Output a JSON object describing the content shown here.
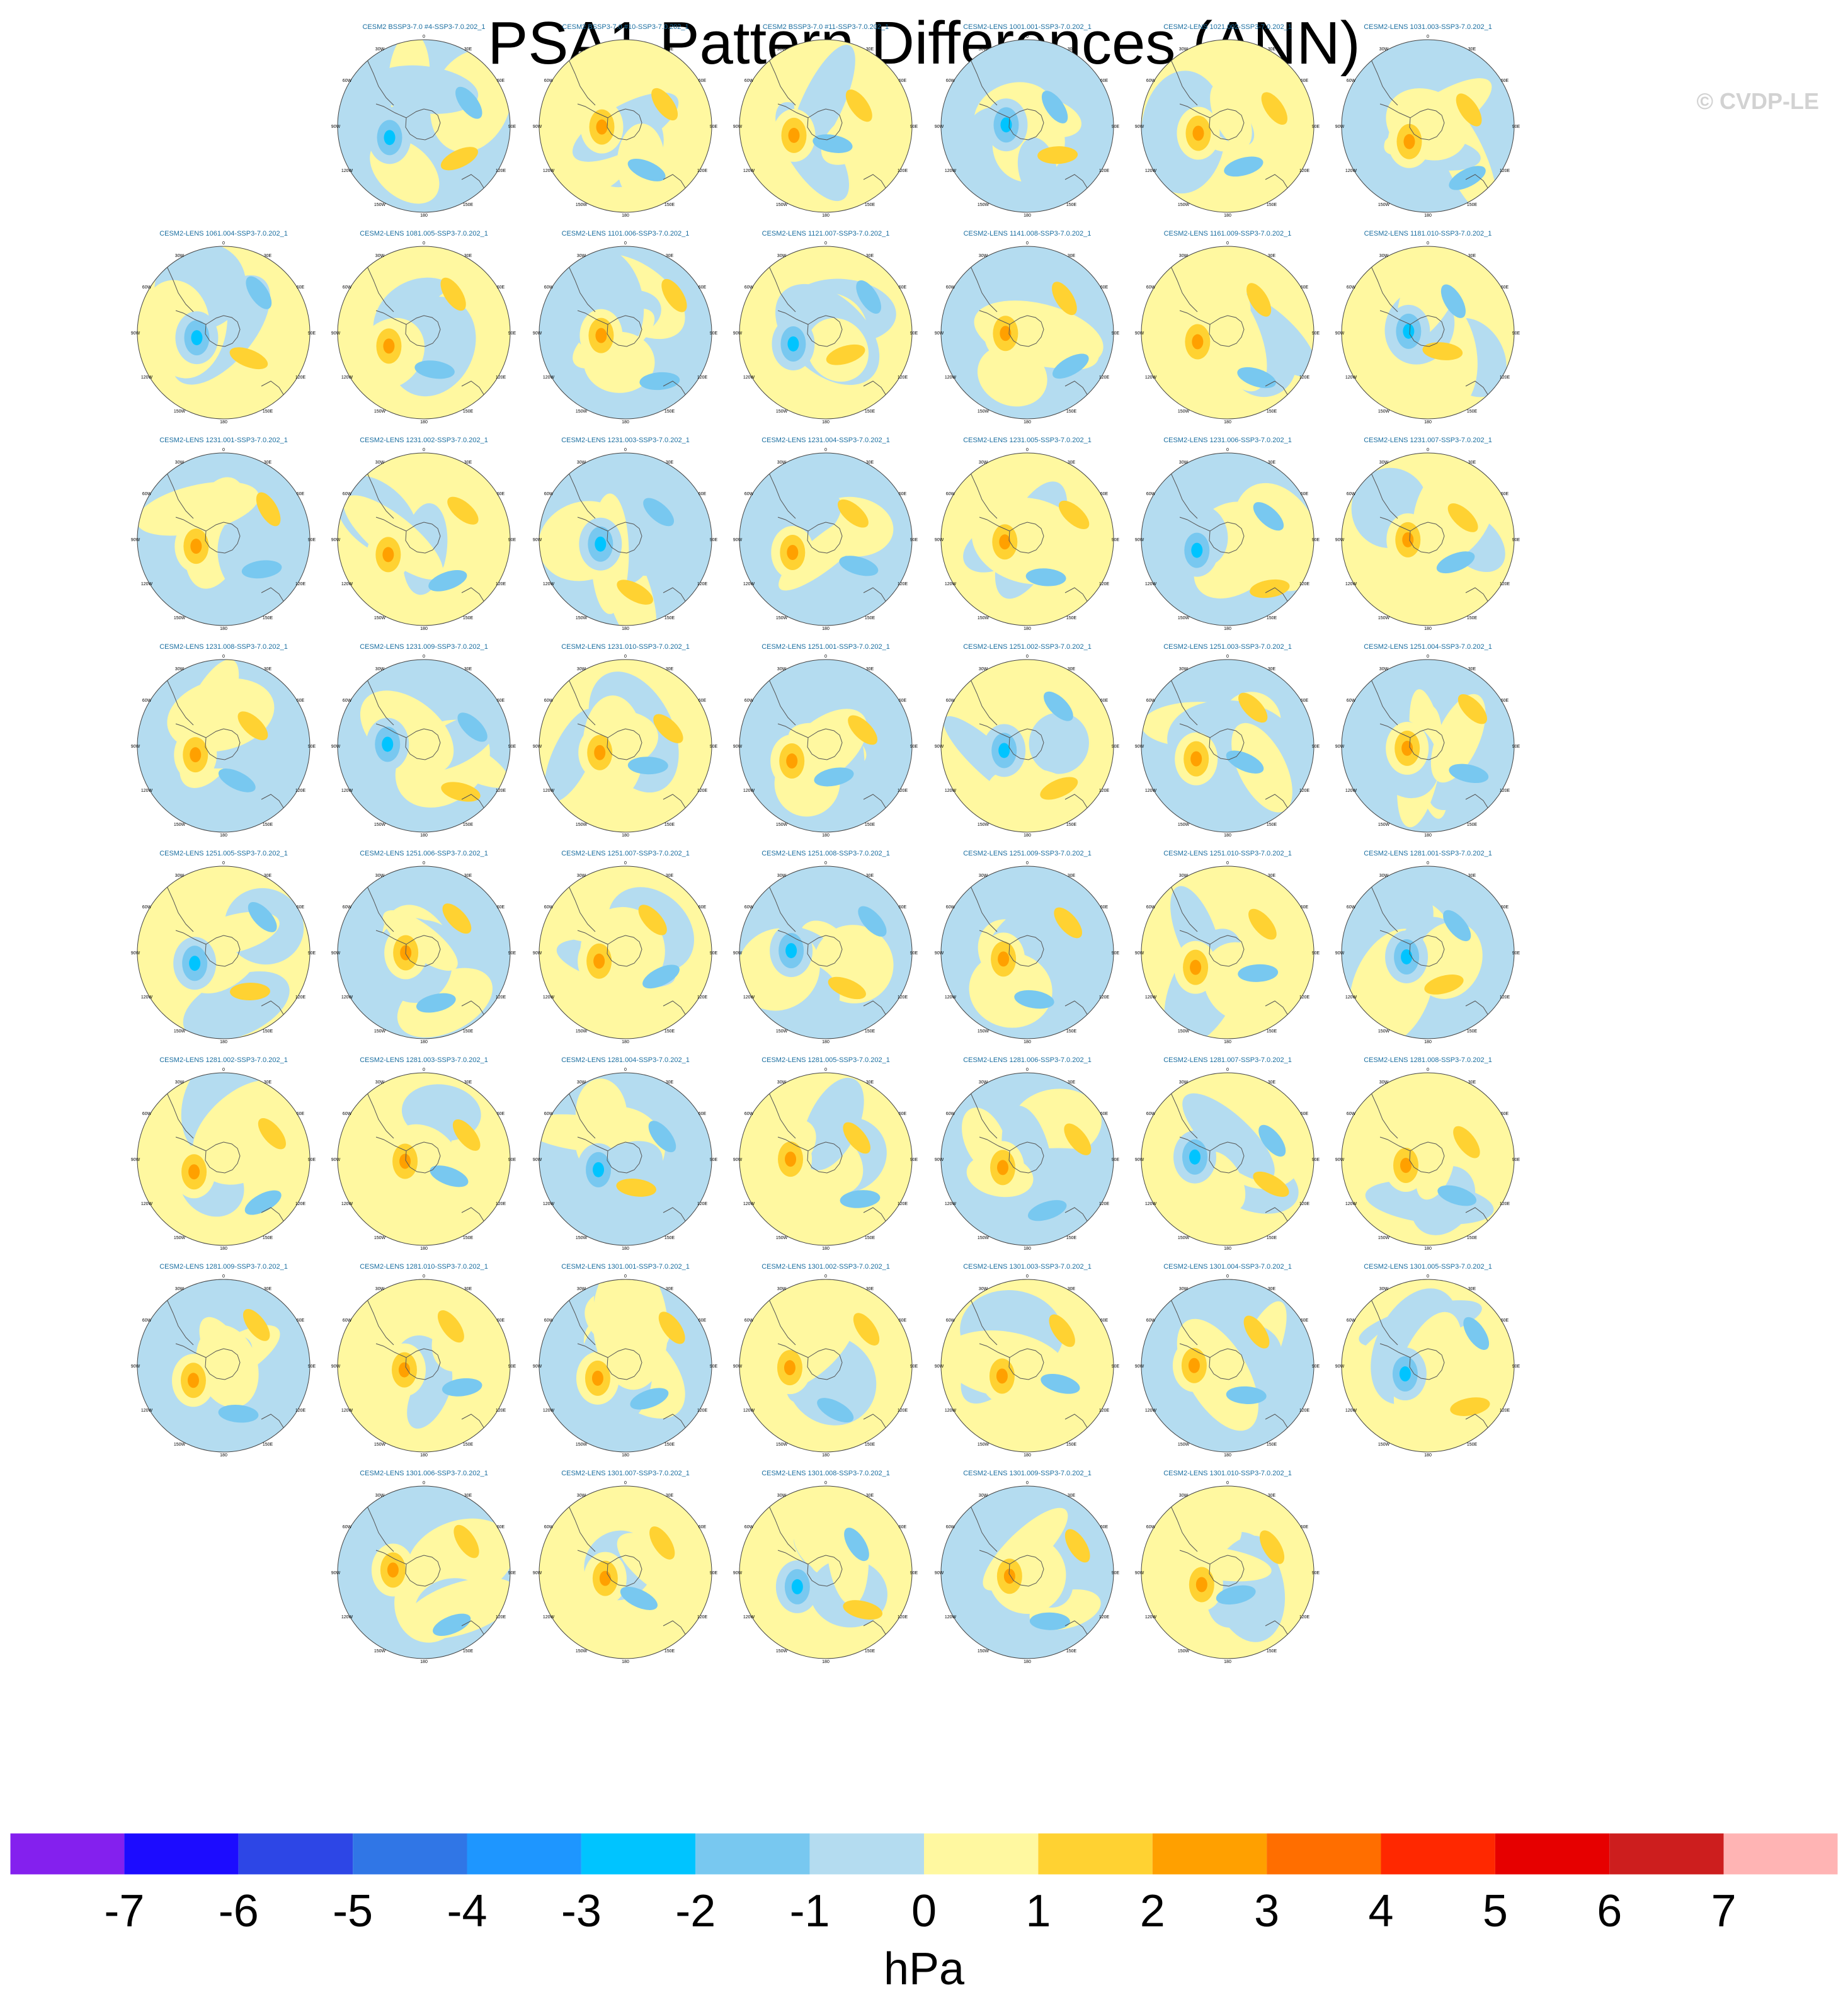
{
  "title": "PSA1 Pattern Differences (ANN)",
  "copyright": "© CVDP-LE",
  "units": "hPa",
  "map_labels": {
    "top": "0",
    "bottom": "180",
    "upper_left": "30W",
    "upper_right": "30E",
    "left_upper": "60W",
    "right_upper": "60E",
    "left": "90W",
    "right": "90E",
    "left_lower": "120W",
    "right_lower": "120E",
    "lower_left": "150W",
    "lower_right": "150E"
  },
  "chart_data": {
    "type": "heatmap",
    "projection": "south-polar-stereographic",
    "panels": [
      "CESM2 BSSP3-7.0 #4-SSP3-7.0.202_1",
      "CESM2 BSSP3-7.0 #10-SSP3-7.0.202_1",
      "CESM2 BSSP3-7.0 #11-SSP3-7.0.202_1",
      "CESM2-LENS 1001.001-SSP3-7.0.202_1",
      "CESM2-LENS 1021.002-SSP3-7.0.202_1",
      "CESM2-LENS 1031.003-SSP3-7.0.202_1",
      "CESM2-LENS 1061.004-SSP3-7.0.202_1",
      "CESM2-LENS 1081.005-SSP3-7.0.202_1",
      "CESM2-LENS 1101.006-SSP3-7.0.202_1",
      "CESM2-LENS 1121.007-SSP3-7.0.202_1",
      "CESM2-LENS 1141.008-SSP3-7.0.202_1",
      "CESM2-LENS 1161.009-SSP3-7.0.202_1",
      "CESM2-LENS 1181.010-SSP3-7.0.202_1",
      "CESM2-LENS 1231.001-SSP3-7.0.202_1",
      "CESM2-LENS 1231.002-SSP3-7.0.202_1",
      "CESM2-LENS 1231.003-SSP3-7.0.202_1",
      "CESM2-LENS 1231.004-SSP3-7.0.202_1",
      "CESM2-LENS 1231.005-SSP3-7.0.202_1",
      "CESM2-LENS 1231.006-SSP3-7.0.202_1",
      "CESM2-LENS 1231.007-SSP3-7.0.202_1",
      "CESM2-LENS 1231.008-SSP3-7.0.202_1",
      "CESM2-LENS 1231.009-SSP3-7.0.202_1",
      "CESM2-LENS 1231.010-SSP3-7.0.202_1",
      "CESM2-LENS 1251.001-SSP3-7.0.202_1",
      "CESM2-LENS 1251.002-SSP3-7.0.202_1",
      "CESM2-LENS 1251.003-SSP3-7.0.202_1",
      "CESM2-LENS 1251.004-SSP3-7.0.202_1",
      "CESM2-LENS 1251.005-SSP3-7.0.202_1",
      "CESM2-LENS 1251.006-SSP3-7.0.202_1",
      "CESM2-LENS 1251.007-SSP3-7.0.202_1",
      "CESM2-LENS 1251.008-SSP3-7.0.202_1",
      "CESM2-LENS 1251.009-SSP3-7.0.202_1",
      "CESM2-LENS 1251.010-SSP3-7.0.202_1",
      "CESM2-LENS 1281.001-SSP3-7.0.202_1",
      "CESM2-LENS 1281.002-SSP3-7.0.202_1",
      "CESM2-LENS 1281.003-SSP3-7.0.202_1",
      "CESM2-LENS 1281.004-SSP3-7.0.202_1",
      "CESM2-LENS 1281.005-SSP3-7.0.202_1",
      "CESM2-LENS 1281.006-SSP3-7.0.202_1",
      "CESM2-LENS 1281.007-SSP3-7.0.202_1",
      "CESM2-LENS 1281.008-SSP3-7.0.202_1",
      "CESM2-LENS 1281.009-SSP3-7.0.202_1",
      "CESM2-LENS 1281.010-SSP3-7.0.202_1",
      "CESM2-LENS 1301.001-SSP3-7.0.202_1",
      "CESM2-LENS 1301.002-SSP3-7.0.202_1",
      "CESM2-LENS 1301.003-SSP3-7.0.202_1",
      "CESM2-LENS 1301.004-SSP3-7.0.202_1",
      "CESM2-LENS 1301.005-SSP3-7.0.202_1",
      "CESM2-LENS 1301.006-SSP3-7.0.202_1",
      "CESM2-LENS 1301.007-SSP3-7.0.202_1",
      "CESM2-LENS 1301.008-SSP3-7.0.202_1",
      "CESM2-LENS 1301.009-SSP3-7.0.202_1",
      "CESM2-LENS 1301.010-SSP3-7.0.202_1"
    ],
    "colorbar": {
      "levels": [
        -7,
        -6,
        -5,
        -4,
        -3,
        -2,
        -1,
        0,
        1,
        2,
        3,
        4,
        5,
        6,
        7
      ],
      "colors": [
        "#8420ee",
        "#1c0cff",
        "#2d46e6",
        "#3076e6",
        "#1e96ff",
        "#00c4ff",
        "#78c8f0",
        "#b4dcf0",
        "#fff8a0",
        "#ffd232",
        "#ffa000",
        "#ff6e00",
        "#ff2800",
        "#e60000",
        "#cd1e1e",
        "#ffb4b4"
      ]
    }
  }
}
